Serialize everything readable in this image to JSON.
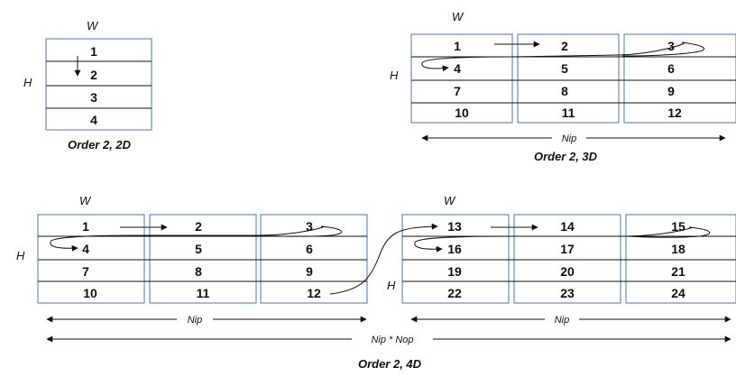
{
  "labels": {
    "width": "W",
    "height": "H",
    "nip": "Nip",
    "nip_nop": "Nip * Nop"
  },
  "captions": {
    "d2": "Order 2, 2D",
    "d3": "Order 2, 3D",
    "d4": "Order 2, 4D"
  },
  "panel_2d": {
    "cells": [
      "1",
      "2",
      "3",
      "4"
    ]
  },
  "panel_3d": {
    "blocks": [
      [
        "1",
        "4",
        "7",
        "10"
      ],
      [
        "2",
        "5",
        "8",
        "11"
      ],
      [
        "3",
        "6",
        "9",
        "12"
      ]
    ]
  },
  "panel_4d": {
    "groups": [
      [
        [
          "1",
          "4",
          "7",
          "10"
        ],
        [
          "2",
          "5",
          "8",
          "11"
        ],
        [
          "3",
          "6",
          "9",
          "12"
        ]
      ],
      [
        [
          "13",
          "16",
          "19",
          "22"
        ],
        [
          "14",
          "17",
          "20",
          "23"
        ],
        [
          "15",
          "18",
          "21",
          "24"
        ]
      ]
    ]
  },
  "colors": {
    "grid_border": "#4f79a9",
    "line": "#111111"
  }
}
